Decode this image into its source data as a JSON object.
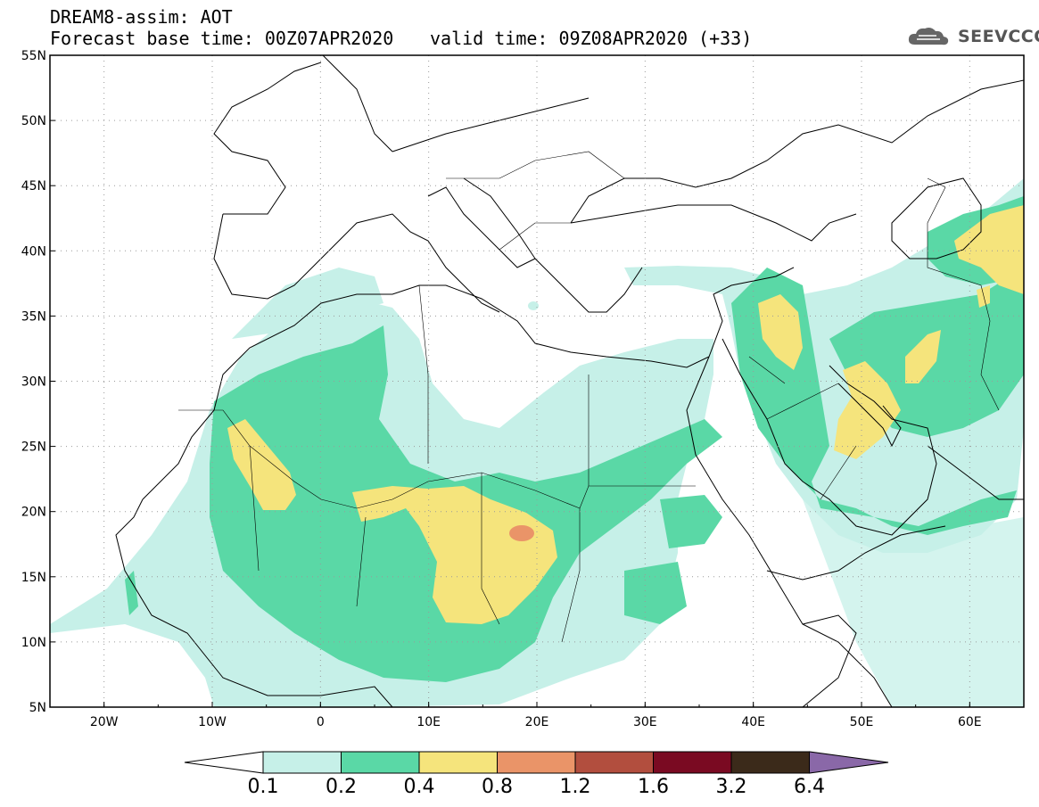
{
  "header": {
    "title": "DREAM8-assim: AOT",
    "base_time": "Forecast base time: 00Z07APR2020",
    "valid_time": "valid time: 09Z08APR2020 (+33)"
  },
  "logo": {
    "text": "SEEVCCC",
    "icon": "cloud-logo-icon"
  },
  "map": {
    "variable": "AOT",
    "lon_range": [
      -25,
      65
    ],
    "lat_range": [
      5,
      55
    ],
    "x_ticks": [
      "20W",
      "10W",
      "0",
      "10E",
      "20E",
      "30E",
      "40E",
      "50E",
      "60E"
    ],
    "y_ticks": [
      "55N",
      "50N",
      "45N",
      "40N",
      "35N",
      "30N",
      "25N",
      "20N",
      "15N",
      "10N",
      "5N"
    ]
  },
  "colorbar": {
    "labels": [
      "0.1",
      "0.2",
      "0.4",
      "0.8",
      "1.2",
      "1.6",
      "3.2",
      "6.4"
    ],
    "colors": [
      "#ffffff",
      "#c6f0e8",
      "#5ad8a6",
      "#f5e47c",
      "#ea9468",
      "#b24e3e",
      "#7a0a22",
      "#3b2a1a",
      "#8a68a8"
    ]
  },
  "colors": {
    "level_0_1": "#c6f0e8",
    "level_0_2": "#5ad8a6",
    "level_0_4": "#f5e47c",
    "level_0_8": "#ea9468",
    "grid": "#9a9a9a",
    "coast": "#000000"
  }
}
